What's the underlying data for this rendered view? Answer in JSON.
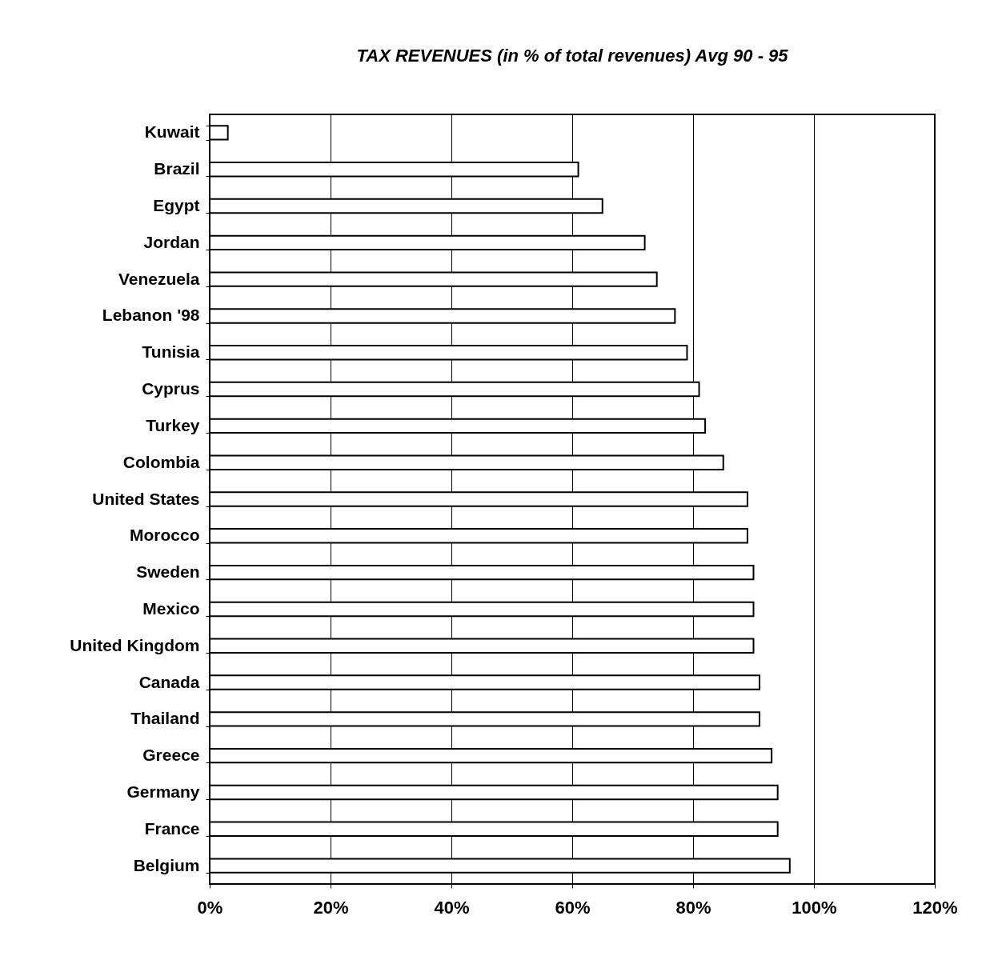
{
  "chart_data": {
    "type": "bar",
    "orientation": "horizontal",
    "title": "TAX REVENUES (in % of total revenues) Avg 90 - 95",
    "categories": [
      "Kuwait",
      "Brazil",
      "Egypt",
      "Jordan",
      "Venezuela",
      "Lebanon '98",
      "Tunisia",
      "Cyprus",
      "Turkey",
      "Colombia",
      "United States",
      "Morocco",
      "Sweden",
      "Mexico",
      "United Kingdom",
      "Canada",
      "Thailand",
      "Greece",
      "Germany",
      "France",
      "Belgium"
    ],
    "values": [
      3,
      61,
      65,
      72,
      74,
      77,
      79,
      81,
      82,
      85,
      89,
      89,
      90,
      90,
      90,
      91,
      91,
      93,
      94,
      94,
      96
    ],
    "color": "#ffffff",
    "xlim": [
      0,
      120
    ],
    "xticks": [
      {
        "value": 0,
        "label": "0%"
      },
      {
        "value": 20,
        "label": "20%"
      },
      {
        "value": 40,
        "label": "40%"
      },
      {
        "value": 60,
        "label": "60%"
      },
      {
        "value": 80,
        "label": "80%"
      },
      {
        "value": 100,
        "label": "100%"
      },
      {
        "value": 120,
        "label": "120%"
      }
    ],
    "grid": "x"
  }
}
